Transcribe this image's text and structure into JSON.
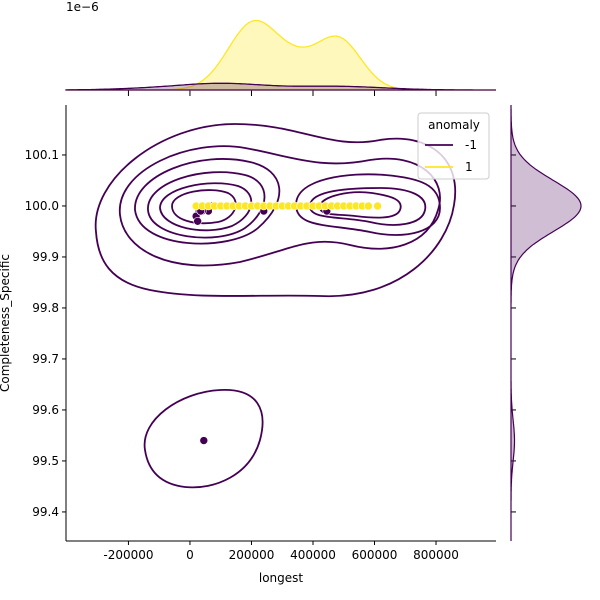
{
  "chart_data": {
    "type": "scatter",
    "subtype": "jointplot with kde contours and marginal kde",
    "xlabel": "longest",
    "ylabel": "Completeness_Specific",
    "xlim": [
      -403000,
      995000
    ],
    "ylim": [
      99.343,
      100.198
    ],
    "x_ticks": [
      "-200000",
      "0",
      "200000",
      "400000",
      "600000",
      "800000"
    ],
    "x_tick_values": [
      -200000,
      0,
      200000,
      400000,
      600000,
      800000
    ],
    "y_ticks": [
      "99.4",
      "99.5",
      "99.6",
      "99.7",
      "99.8",
      "99.9",
      "100.0",
      "100.1"
    ],
    "y_tick_values": [
      99.4,
      99.5,
      99.6,
      99.7,
      99.8,
      99.9,
      100.0,
      100.1
    ],
    "top_marginal_scale_label": "1e−6",
    "grid": false,
    "legend": {
      "title": "anomaly",
      "placement": "top-right",
      "entries": [
        "-1",
        "1"
      ]
    },
    "series": [
      {
        "name": "-1",
        "color": "#440154",
        "points": [
          [
            70000,
            100.0
          ],
          [
            60000,
            99.99
          ],
          [
            40000,
            99.99
          ],
          [
            30000,
            99.99
          ],
          [
            20000,
            99.98
          ],
          [
            25000,
            99.97
          ],
          [
            35000,
            99.99
          ],
          [
            240000,
            99.99
          ],
          [
            445000,
            99.99
          ],
          [
            540000,
            100.0
          ],
          [
            45000,
            99.54
          ]
        ]
      },
      {
        "name": "1",
        "color": "#fde725",
        "points": [
          [
            20000,
            100.0
          ],
          [
            40000,
            100.0
          ],
          [
            60000,
            100.0
          ],
          [
            80000,
            100.0
          ],
          [
            100000,
            100.0
          ],
          [
            120000,
            100.0
          ],
          [
            140000,
            100.0
          ],
          [
            160000,
            100.0
          ],
          [
            180000,
            100.0
          ],
          [
            200000,
            100.0
          ],
          [
            220000,
            100.0
          ],
          [
            240000,
            100.0
          ],
          [
            260000,
            100.0
          ],
          [
            280000,
            100.0
          ],
          [
            300000,
            100.0
          ],
          [
            320000,
            100.0
          ],
          [
            340000,
            100.0
          ],
          [
            360000,
            100.0
          ],
          [
            380000,
            100.0
          ],
          [
            400000,
            100.0
          ],
          [
            420000,
            100.0
          ],
          [
            440000,
            100.0
          ],
          [
            460000,
            100.0
          ],
          [
            480000,
            100.0
          ],
          [
            500000,
            100.0
          ],
          [
            520000,
            100.0
          ],
          [
            540000,
            100.0
          ],
          [
            560000,
            100.0
          ],
          [
            580000,
            100.0
          ],
          [
            610000,
            100.0
          ]
        ]
      }
    ]
  }
}
